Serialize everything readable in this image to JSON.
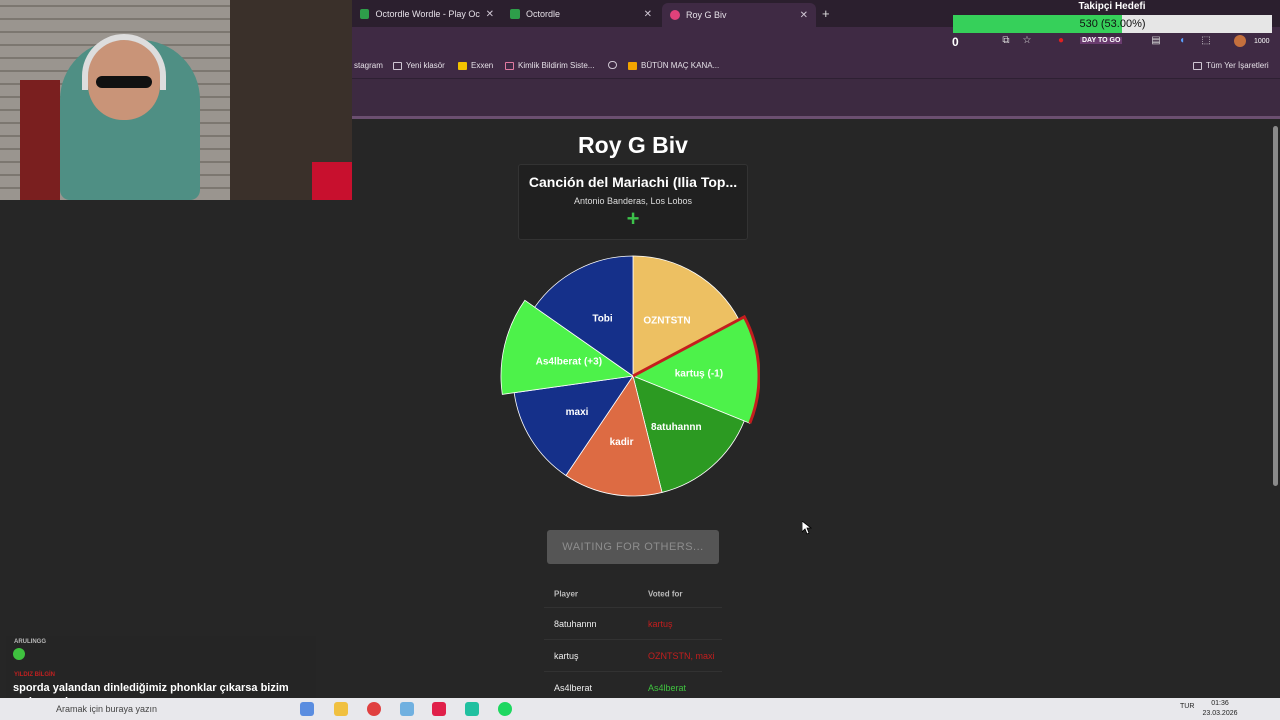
{
  "browser": {
    "tabs": [
      {
        "label": "Octordle Wordle - Play Octordle",
        "favicon_color": "#2e9e4a"
      },
      {
        "label": "Octordle",
        "favicon_color": "#2e9e4a"
      },
      {
        "label": "Roy G Biv",
        "favicon_color": "#e0417a",
        "active": true
      }
    ],
    "bookmarks": [
      "stagram",
      "Yeni klasör",
      "Exxen",
      "Kimlik Bildirim Siste...",
      "BÜTÜN MAÇ KANA...",
      "Tüm Yer İşaretleri"
    ]
  },
  "goal": {
    "title": "Takipçi Hedefi",
    "progress_text": "530 (53.00%)",
    "progress_fraction": 0.53,
    "left_value": "0",
    "right_value": "1000",
    "badge": "DAY TO GO"
  },
  "game": {
    "title": "Roy G Biv",
    "song_title": "Canción del Mariachi (Ilia Top...",
    "song_artist": "Antonio Banderas, Los Lobos",
    "add_symbol": "+",
    "wait_button": "WAITING FOR OTHERS...",
    "wheel": [
      {
        "label": "OZNTSTN",
        "color": "#edc062"
      },
      {
        "label": "kartuş (-1)",
        "color": "#4df24a"
      },
      {
        "label": "8atuhannn",
        "color": "#2c9a22"
      },
      {
        "label": "kadir",
        "color": "#dd6b43"
      },
      {
        "label": "maxi",
        "color": "#15308a"
      },
      {
        "label": "As4lberat (+3)",
        "color": "#4df24a"
      },
      {
        "label": "Tobi",
        "color": "#15308a"
      }
    ],
    "votes_header": {
      "player": "Player",
      "voted_for": "Voted for"
    },
    "votes": [
      {
        "player": "8atuhannn",
        "voted_for": "kartuş",
        "color": "#c41e1e"
      },
      {
        "player": "kartuş",
        "voted_for": "OZNTSTN, maxi",
        "color": "#c41e1e"
      },
      {
        "player": "As4lberat",
        "voted_for": "As4lberat",
        "color": "#3fc23f"
      }
    ]
  },
  "chat": {
    "user1": "ARULINGG",
    "user2": "YILDIZ BİLGİN",
    "message": "sporda yalandan dinlediğimiz phonklar çıkarsa bizim mahçup oluş"
  },
  "taskbar": {
    "search_placeholder": "Aramak için buraya yazın",
    "language": "TUR",
    "time": "01:36",
    "date": "23.03.2026"
  }
}
